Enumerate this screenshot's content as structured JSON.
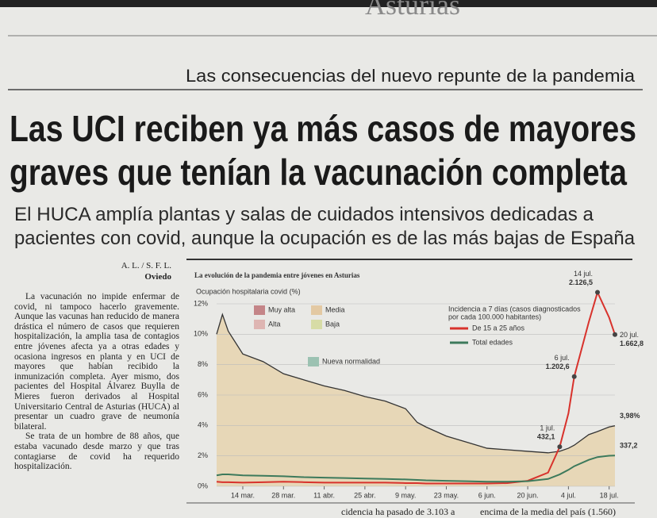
{
  "masthead": "Asturias",
  "kicker": "Las consecuencias del nuevo repunte de la pandemia",
  "headline": [
    "Las UCI reciben ya más casos de mayores",
    "graves que tenían la vacunación completa"
  ],
  "subheadline": [
    "El HUCA amplía plantas y salas de cuidados intensivos dedicadas a",
    "pacientes con covid, aunque la ocupación es de las más bajas de España"
  ],
  "byline": "A. L. / S. F. L.",
  "location": "Oviedo",
  "body": [
    "La vacunación no impide enfermar de covid, ni tampoco hacerlo gravemente. Aunque las vacunas han reducido de manera drástica el número de casos que requieren hospitalización, la amplia tasa de contagios entre jóvenes afecta ya a otras edades y ocasiona ingresos en planta y en UCI de mayores que habían recibido la inmunización completa. Ayer mismo, dos pacientes del Hospital Álvarez Buylla de Mieres fueron derivados al Hospital Universitario Central de Asturias (HUCA) al presentar un cuadro grave de neumonía bilateral.",
    "Se trata de un hombre de 88 años, que estaba vacunado desde marzo y que tras contagiarse de covid ha requerido hospitalización."
  ],
  "footer_fragments": [
    "cidencia ha pasado de 3.103 a",
    "encima de la media del país (1.560)"
  ],
  "chart_data": {
    "type": "line",
    "title": "La evolución de la pandemia entre jóvenes en Asturias",
    "y_label": "Ocupación hospitalaria covid (%)",
    "x": [
      64,
      66,
      68,
      73,
      80,
      87,
      94,
      101,
      108,
      115,
      122,
      129,
      133,
      136,
      143,
      150,
      157,
      164,
      171,
      178,
      182,
      185,
      187,
      192,
      195,
      199,
      201
    ],
    "xlim": [
      64,
      201
    ],
    "xticks": [
      {
        "value": 73,
        "label": "14 mar."
      },
      {
        "value": 87,
        "label": "28 mar."
      },
      {
        "value": 101,
        "label": "11 abr."
      },
      {
        "value": 115,
        "label": "25 abr."
      },
      {
        "value": 129,
        "label": "9 may."
      },
      {
        "value": 143,
        "label": "23 may."
      },
      {
        "value": 157,
        "label": "6 jun."
      },
      {
        "value": 171,
        "label": "20 jun."
      },
      {
        "value": 185,
        "label": "4 jul."
      },
      {
        "value": 199,
        "label": "18 jul."
      }
    ],
    "ylim": [
      0,
      12
    ],
    "yticks": [
      {
        "value": 0,
        "label": "0%"
      },
      {
        "value": 2,
        "label": "2%"
      },
      {
        "value": 4,
        "label": "4%"
      },
      {
        "value": 6,
        "label": "6%"
      },
      {
        "value": 8,
        "label": "8%"
      },
      {
        "value": 10,
        "label": "10%"
      },
      {
        "value": 12,
        "label": "12%"
      }
    ],
    "y2lim": [
      0,
      2000
    ],
    "grid": true,
    "area_color": "#e6d3ae",
    "level_legend": [
      {
        "name": "Muy alta",
        "color": "#c48588"
      },
      {
        "name": "Media",
        "color": "#e3c9a3"
      },
      {
        "name": "Alta",
        "color": "#deb5b2"
      },
      {
        "name": "Baja",
        "color": "#d7dca6"
      },
      {
        "name": "Nueva normalidad",
        "color": "#9cc2b2"
      }
    ],
    "y2_legend_title": [
      "Incidencia a 7 días (casos diagnosticados",
      "por cada 100.000 habitantes)"
    ],
    "series": [
      {
        "color": "#333333",
        "values": [
          10.0,
          11.3,
          10.2,
          8.7,
          8.2,
          7.4,
          7.0,
          6.6,
          6.3,
          5.9,
          5.6,
          5.1,
          4.2,
          3.9,
          3.3,
          2.9,
          2.5,
          2.4,
          2.3,
          2.2,
          2.3,
          2.5,
          2.7,
          3.4,
          3.6,
          3.9,
          3.98
        ],
        "value_labels": [
          null,
          null,
          null,
          null,
          null,
          null,
          null,
          null,
          null,
          null,
          null,
          null,
          null,
          null,
          null,
          null,
          null,
          null,
          null,
          null,
          null,
          null,
          null,
          null,
          null,
          null,
          "3,98%"
        ]
      },
      {
        "name": "De 15 a 25 años",
        "color": "#d8322c",
        "axis": "y2",
        "values": [
          50,
          45,
          45,
          40,
          45,
          50,
          45,
          40,
          40,
          40,
          40,
          35,
          35,
          30,
          30,
          30,
          30,
          35,
          60,
          150,
          432.1,
          800,
          1202.6,
          1800,
          2126.5,
          1850,
          1662.8
        ],
        "value_labels": [
          null,
          null,
          null,
          null,
          null,
          null,
          null,
          null,
          null,
          null,
          null,
          null,
          null,
          null,
          null,
          null,
          null,
          null,
          null,
          null,
          "432,1",
          null,
          "1.202,6",
          null,
          "2.126,5",
          null,
          "1.662,8"
        ],
        "value_dates": [
          null,
          null,
          null,
          null,
          null,
          null,
          null,
          null,
          null,
          null,
          null,
          null,
          null,
          null,
          null,
          null,
          null,
          null,
          null,
          null,
          "1 jul.",
          null,
          "6 jul.",
          null,
          "14 jul.",
          null,
          "20 jul."
        ]
      },
      {
        "name": "Total edades",
        "color": "#3d7a5c",
        "axis": "y2",
        "values": [
          120,
          130,
          130,
          120,
          115,
          110,
          100,
          95,
          90,
          85,
          80,
          75,
          70,
          65,
          60,
          55,
          50,
          50,
          55,
          80,
          130,
          180,
          220,
          290,
          320,
          335,
          337.2
        ],
        "value_labels": [
          null,
          null,
          null,
          null,
          null,
          null,
          null,
          null,
          null,
          null,
          null,
          null,
          null,
          null,
          null,
          null,
          null,
          null,
          null,
          null,
          null,
          null,
          null,
          null,
          null,
          null,
          "337,2"
        ]
      }
    ]
  }
}
